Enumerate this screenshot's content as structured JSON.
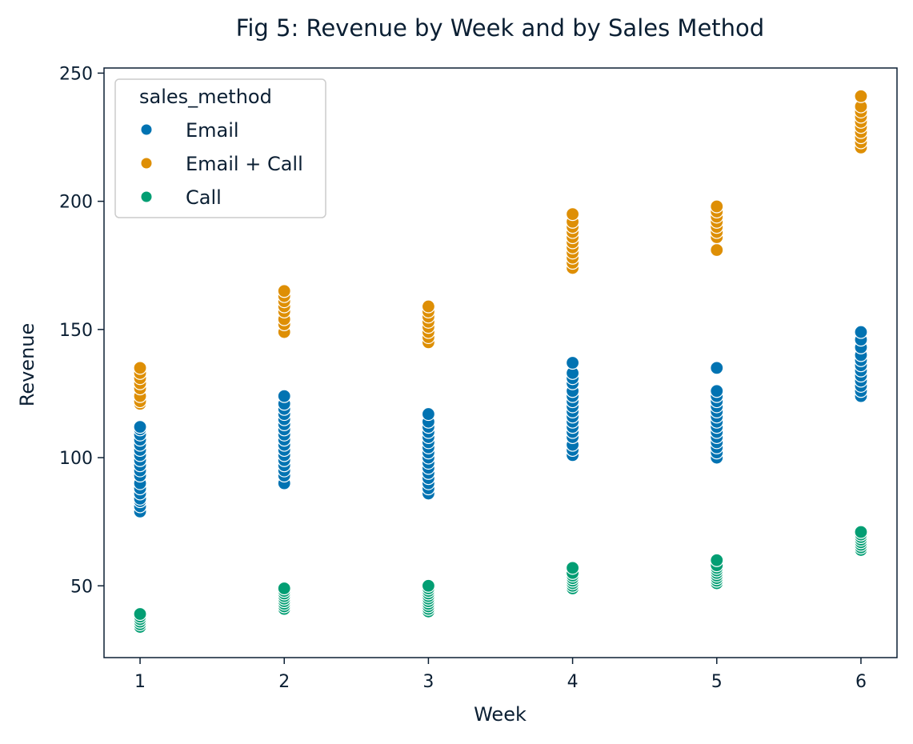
{
  "chart_data": {
    "type": "scatter",
    "title": "Fig 5: Revenue by Week and by Sales Method",
    "xlabel": "Week",
    "ylabel": "Revenue",
    "xlim": [
      0.75,
      6.25
    ],
    "ylim": [
      22,
      252
    ],
    "xticks": [
      "1",
      "2",
      "3",
      "4",
      "5",
      "6"
    ],
    "yticks": [
      "50",
      "100",
      "150",
      "200",
      "250"
    ],
    "grid": false,
    "legend": {
      "title": "sales_method",
      "placement": "top-left"
    },
    "series": [
      {
        "name": "Email",
        "color": "#0173b2",
        "points": [
          [
            1,
            79
          ],
          [
            1,
            81
          ],
          [
            1,
            83
          ],
          [
            1,
            84
          ],
          [
            1,
            86
          ],
          [
            1,
            88
          ],
          [
            1,
            90
          ],
          [
            1,
            93
          ],
          [
            1,
            95
          ],
          [
            1,
            97
          ],
          [
            1,
            99
          ],
          [
            1,
            101
          ],
          [
            1,
            103
          ],
          [
            1,
            105
          ],
          [
            1,
            107
          ],
          [
            1,
            109
          ],
          [
            1,
            111
          ],
          [
            1,
            112
          ],
          [
            2,
            90
          ],
          [
            2,
            93
          ],
          [
            2,
            95
          ],
          [
            2,
            97
          ],
          [
            2,
            99
          ],
          [
            2,
            101
          ],
          [
            2,
            103
          ],
          [
            2,
            105
          ],
          [
            2,
            107
          ],
          [
            2,
            109
          ],
          [
            2,
            111
          ],
          [
            2,
            113
          ],
          [
            2,
            115
          ],
          [
            2,
            117
          ],
          [
            2,
            119
          ],
          [
            2,
            121
          ],
          [
            2,
            124
          ],
          [
            3,
            86
          ],
          [
            3,
            88
          ],
          [
            3,
            90
          ],
          [
            3,
            92
          ],
          [
            3,
            94
          ],
          [
            3,
            96
          ],
          [
            3,
            98
          ],
          [
            3,
            100
          ],
          [
            3,
            102
          ],
          [
            3,
            104
          ],
          [
            3,
            106
          ],
          [
            3,
            108
          ],
          [
            3,
            110
          ],
          [
            3,
            112
          ],
          [
            3,
            114
          ],
          [
            3,
            117
          ],
          [
            4,
            101
          ],
          [
            4,
            103
          ],
          [
            4,
            105
          ],
          [
            4,
            108
          ],
          [
            4,
            110
          ],
          [
            4,
            112
          ],
          [
            4,
            114
          ],
          [
            4,
            116
          ],
          [
            4,
            118
          ],
          [
            4,
            120
          ],
          [
            4,
            122
          ],
          [
            4,
            124
          ],
          [
            4,
            126
          ],
          [
            4,
            129
          ],
          [
            4,
            131
          ],
          [
            4,
            133
          ],
          [
            4,
            137
          ],
          [
            5,
            100
          ],
          [
            5,
            102
          ],
          [
            5,
            104
          ],
          [
            5,
            106
          ],
          [
            5,
            108
          ],
          [
            5,
            110
          ],
          [
            5,
            112
          ],
          [
            5,
            114
          ],
          [
            5,
            116
          ],
          [
            5,
            118
          ],
          [
            5,
            120
          ],
          [
            5,
            122
          ],
          [
            5,
            124
          ],
          [
            5,
            126
          ],
          [
            5,
            135
          ],
          [
            6,
            124
          ],
          [
            6,
            126
          ],
          [
            6,
            128
          ],
          [
            6,
            130
          ],
          [
            6,
            132
          ],
          [
            6,
            134
          ],
          [
            6,
            136
          ],
          [
            6,
            138
          ],
          [
            6,
            140
          ],
          [
            6,
            143
          ],
          [
            6,
            146
          ],
          [
            6,
            149
          ]
        ]
      },
      {
        "name": "Email + Call",
        "color": "#de8f05",
        "points": [
          [
            1,
            121
          ],
          [
            1,
            122
          ],
          [
            1,
            124
          ],
          [
            1,
            127
          ],
          [
            1,
            129
          ],
          [
            1,
            131
          ],
          [
            1,
            133
          ],
          [
            1,
            135
          ],
          [
            2,
            149
          ],
          [
            2,
            152
          ],
          [
            2,
            154
          ],
          [
            2,
            157
          ],
          [
            2,
            159
          ],
          [
            2,
            161
          ],
          [
            2,
            163
          ],
          [
            2,
            165
          ],
          [
            3,
            145
          ],
          [
            3,
            147
          ],
          [
            3,
            149
          ],
          [
            3,
            151
          ],
          [
            3,
            153
          ],
          [
            3,
            155
          ],
          [
            3,
            157
          ],
          [
            3,
            159
          ],
          [
            4,
            174
          ],
          [
            4,
            176
          ],
          [
            4,
            178
          ],
          [
            4,
            180
          ],
          [
            4,
            182
          ],
          [
            4,
            184
          ],
          [
            4,
            186
          ],
          [
            4,
            188
          ],
          [
            4,
            190
          ],
          [
            4,
            192
          ],
          [
            4,
            195
          ],
          [
            5,
            181
          ],
          [
            5,
            186
          ],
          [
            5,
            188
          ],
          [
            5,
            190
          ],
          [
            5,
            192
          ],
          [
            5,
            194
          ],
          [
            5,
            196
          ],
          [
            5,
            198
          ],
          [
            6,
            221
          ],
          [
            6,
            223
          ],
          [
            6,
            225
          ],
          [
            6,
            227
          ],
          [
            6,
            229
          ],
          [
            6,
            231
          ],
          [
            6,
            233
          ],
          [
            6,
            235
          ],
          [
            6,
            237
          ],
          [
            6,
            241
          ]
        ]
      },
      {
        "name": "Call",
        "color": "#029e73",
        "points": [
          [
            1,
            34
          ],
          [
            1,
            35
          ],
          [
            1,
            36
          ],
          [
            1,
            37
          ],
          [
            1,
            38
          ],
          [
            1,
            39
          ],
          [
            2,
            41
          ],
          [
            2,
            42
          ],
          [
            2,
            43
          ],
          [
            2,
            44
          ],
          [
            2,
            45
          ],
          [
            2,
            46
          ],
          [
            2,
            47
          ],
          [
            2,
            48
          ],
          [
            2,
            49
          ],
          [
            3,
            40
          ],
          [
            3,
            41
          ],
          [
            3,
            42
          ],
          [
            3,
            43
          ],
          [
            3,
            44
          ],
          [
            3,
            45
          ],
          [
            3,
            46
          ],
          [
            3,
            47
          ],
          [
            3,
            48
          ],
          [
            3,
            49
          ],
          [
            3,
            50
          ],
          [
            4,
            49
          ],
          [
            4,
            50
          ],
          [
            4,
            51
          ],
          [
            4,
            52
          ],
          [
            4,
            53
          ],
          [
            4,
            54
          ],
          [
            4,
            55
          ],
          [
            4,
            57
          ],
          [
            5,
            51
          ],
          [
            5,
            52
          ],
          [
            5,
            53
          ],
          [
            5,
            54
          ],
          [
            5,
            55
          ],
          [
            5,
            56
          ],
          [
            5,
            57
          ],
          [
            5,
            58
          ],
          [
            5,
            60
          ],
          [
            6,
            64
          ],
          [
            6,
            65
          ],
          [
            6,
            66
          ],
          [
            6,
            67
          ],
          [
            6,
            68
          ],
          [
            6,
            69
          ],
          [
            6,
            70
          ],
          [
            6,
            71
          ]
        ]
      }
    ]
  }
}
